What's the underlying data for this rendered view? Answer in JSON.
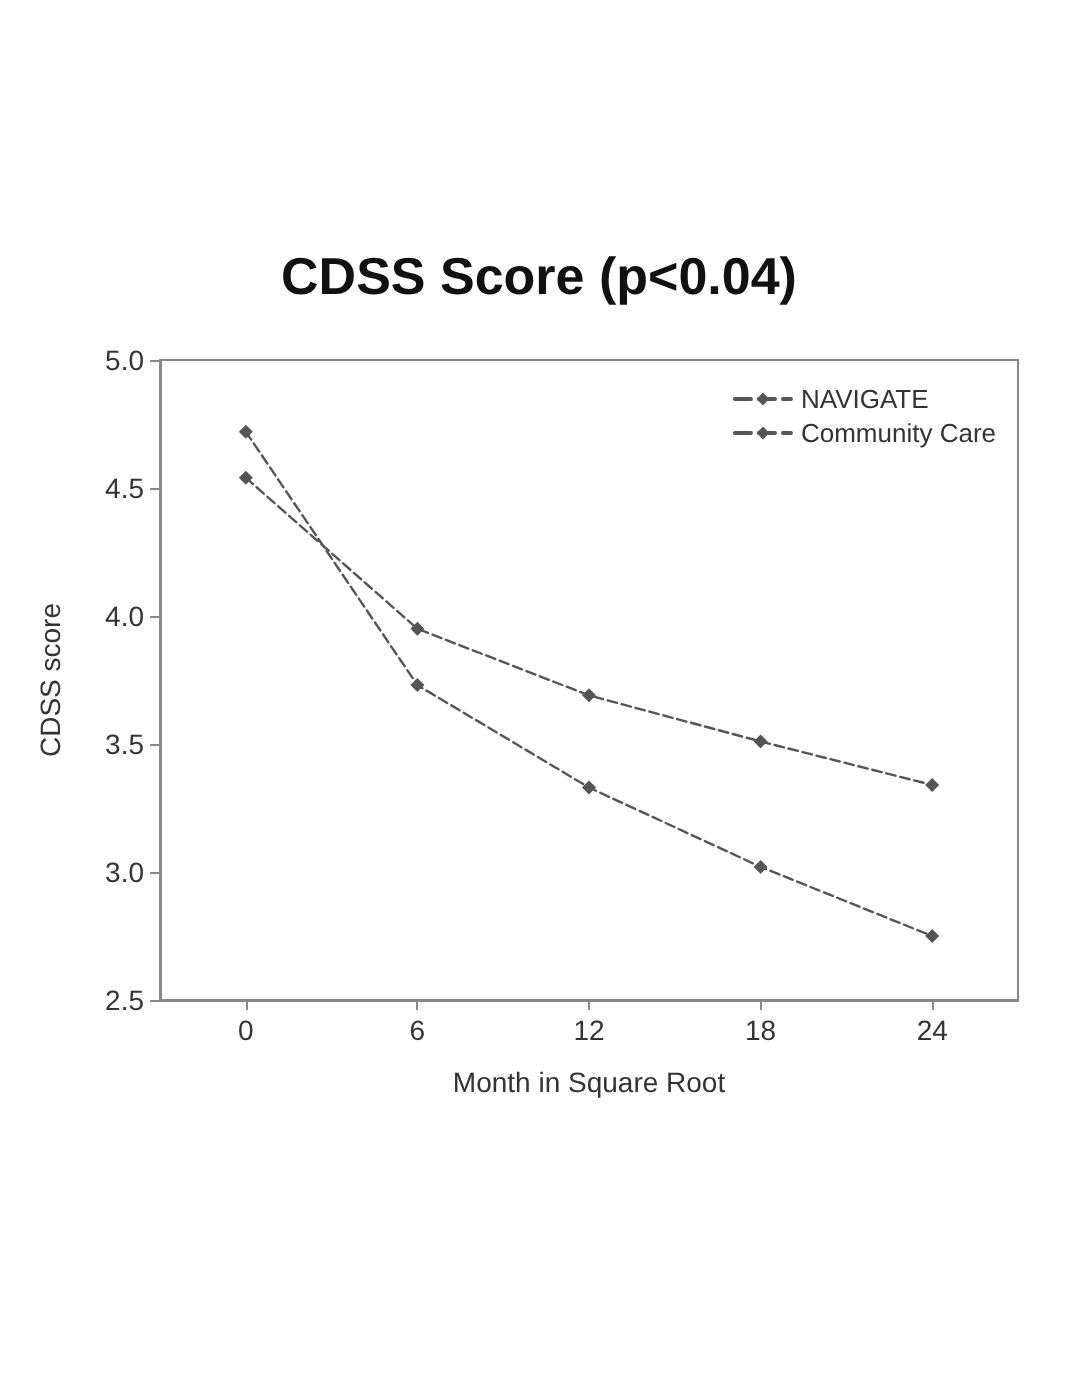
{
  "chart_data": {
    "type": "line",
    "title": "CDSS Score (p<0.04)",
    "xlabel": "Month in Square Root",
    "ylabel": "CDSS score",
    "categories": [
      "0",
      "6",
      "12",
      "18",
      "24"
    ],
    "series": [
      {
        "name": "NAVIGATE",
        "color": "#555555",
        "values": [
          4.72,
          3.73,
          3.33,
          3.02,
          2.75
        ]
      },
      {
        "name": "Community Care",
        "color": "#555555",
        "values": [
          4.54,
          3.95,
          3.69,
          3.51,
          3.34
        ]
      }
    ],
    "ylim": [
      2.5,
      5
    ],
    "yticks": [
      {
        "value": 2.5,
        "label": "2.5"
      },
      {
        "value": 3,
        "label": "3.0"
      },
      {
        "value": 3.5,
        "label": "3.5"
      },
      {
        "value": 4,
        "label": "4.0"
      },
      {
        "value": 4.5,
        "label": "4.5"
      },
      {
        "value": 5,
        "label": "5.0"
      }
    ],
    "grid": false,
    "legend": "top right",
    "marker": "diamond",
    "line_style": "dashed"
  }
}
